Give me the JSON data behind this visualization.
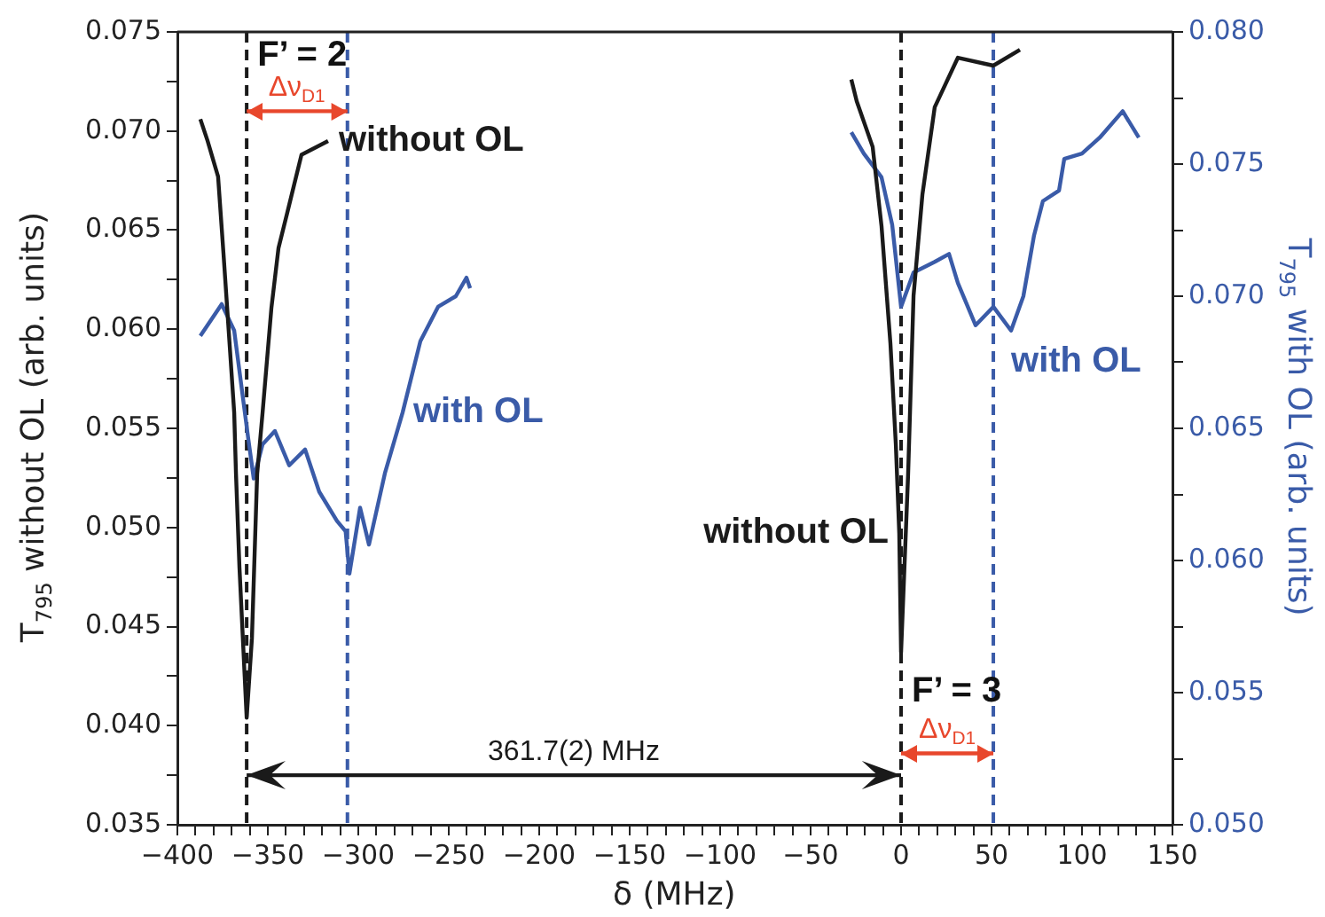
{
  "chart_data": {
    "type": "line",
    "xlabel": "δ (MHz)",
    "ylabel": "T$_{795}$ without OL (arb. units)",
    "y2label": "T$_{795}$ with OL (arb. units)",
    "series": [
      {
        "color": "#1a1a1a",
        "x": [
          -387.3,
          -383.3,
          -377.5,
          -374.5,
          -372.5,
          -368.6,
          -367.6,
          -365.7,
          -361.7,
          -358.8,
          -355.9,
          -352.9,
          -348,
          -344.1,
          -339.2,
          -331.4,
          -316.7,
          -200,
          -27.5,
          -24.5,
          -15.7,
          -10.8,
          -5.9,
          -2.9,
          -1,
          0,
          3.9,
          6.9,
          11.8,
          18.6,
          31.4,
          51,
          65.7
        ],
        "values": [
          0.0706,
          0.0695,
          0.0677,
          0.0638,
          0.0611,
          0.0558,
          0.0527,
          0.048,
          0.0404,
          0.0444,
          0.0527,
          0.0558,
          0.0611,
          0.0641,
          0.0659,
          0.0688,
          0.0695,
          null,
          0.0726,
          0.0715,
          0.0692,
          0.0652,
          0.0593,
          0.0542,
          0.0497,
          0.0437,
          0.0527,
          0.0617,
          0.0668,
          0.0712,
          0.0737,
          0.0733,
          0.0741
        ]
      },
      {
        "color": "#3a5ba8",
        "axis": "y2",
        "x": [
          -387.3,
          -375.5,
          -368.6,
          -360.8,
          -357.8,
          -352.9,
          -346.1,
          -338.2,
          -329.4,
          -321.6,
          -311.8,
          -307,
          -304.9,
          -299,
          -294.1,
          -285.3,
          -275.5,
          -265.7,
          -255.9,
          -246.1,
          -240.2,
          -238.2,
          -100,
          -27.5,
          -20.6,
          -10.8,
          -4.9,
          0,
          6.9,
          18.6,
          26.5,
          31.4,
          41.2,
          51,
          60.8,
          67.6,
          73.5,
          78.4,
          87.3,
          90.2,
          100,
          109.8,
          122.5,
          131.4
        ],
        "values": [
          0.0685,
          0.0697,
          0.0687,
          0.0646,
          0.0631,
          0.0644,
          0.0649,
          0.0636,
          0.0642,
          0.0626,
          0.0615,
          0.0611,
          0.0595,
          0.062,
          0.0606,
          0.0633,
          0.0656,
          0.0683,
          0.0696,
          0.07,
          0.0707,
          0.0703,
          null,
          0.0762,
          0.0754,
          0.0745,
          0.0727,
          0.0696,
          0.0709,
          0.0713,
          0.0716,
          0.0705,
          0.0689,
          0.0696,
          0.0687,
          0.07,
          0.0723,
          0.0736,
          0.074,
          0.0752,
          0.0754,
          0.076,
          0.077,
          0.076
        ]
      },
      {
        "type": "line",
        "color": "#e8472c",
        "x": [
          -361.7,
          -306
        ],
        "values": [
          0.071,
          0.071
        ]
      },
      {
        "type": "line",
        "color": "#1a1a1a",
        "x": [
          -361.7,
          0
        ],
        "values": [
          0.0375,
          0.0375
        ]
      },
      {
        "type": "line",
        "color": "#e8472c",
        "x": [
          0,
          51
        ],
        "values": [
          0.0386,
          0.0386
        ]
      }
    ],
    "xlim": [
      -400,
      150
    ],
    "xticks": [
      {
        "value": -400,
        "label": "−400"
      },
      {
        "value": -390,
        "label": null
      },
      {
        "value": -380,
        "label": null
      },
      {
        "value": -370,
        "label": null
      },
      {
        "value": -360,
        "label": null
      },
      {
        "value": -350,
        "label": "−350"
      },
      {
        "value": -340,
        "label": null
      },
      {
        "value": -330,
        "label": null
      },
      {
        "value": -320,
        "label": null
      },
      {
        "value": -310,
        "label": null
      },
      {
        "value": -300,
        "label": "−300"
      },
      {
        "value": -290,
        "label": null
      },
      {
        "value": -280,
        "label": null
      },
      {
        "value": -270,
        "label": null
      },
      {
        "value": -260,
        "label": null
      },
      {
        "value": -250,
        "label": "−250"
      },
      {
        "value": -240,
        "label": null
      },
      {
        "value": -230,
        "label": null
      },
      {
        "value": -220,
        "label": null
      },
      {
        "value": -210,
        "label": null
      },
      {
        "value": -200,
        "label": "−200"
      },
      {
        "value": -190,
        "label": null
      },
      {
        "value": -180,
        "label": null
      },
      {
        "value": -170,
        "label": null
      },
      {
        "value": -160,
        "label": null
      },
      {
        "value": -150,
        "label": "−150"
      },
      {
        "value": -140,
        "label": null
      },
      {
        "value": -130,
        "label": null
      },
      {
        "value": -120,
        "label": null
      },
      {
        "value": -110,
        "label": null
      },
      {
        "value": -100,
        "label": "−100"
      },
      {
        "value": -90,
        "label": null
      },
      {
        "value": -80,
        "label": null
      },
      {
        "value": -70,
        "label": null
      },
      {
        "value": -60,
        "label": null
      },
      {
        "value": -50,
        "label": "−50"
      },
      {
        "value": -40,
        "label": null
      },
      {
        "value": -30,
        "label": null
      },
      {
        "value": -20,
        "label": null
      },
      {
        "value": -10,
        "label": null
      },
      0,
      {
        "value": 10,
        "label": null
      },
      {
        "value": 20,
        "label": null
      },
      {
        "value": 30,
        "label": null
      },
      {
        "value": 40,
        "label": null
      },
      50,
      {
        "value": 60,
        "label": null
      },
      {
        "value": 70,
        "label": null
      },
      {
        "value": 80,
        "label": null
      },
      {
        "value": 90,
        "label": null
      },
      100,
      {
        "value": 110,
        "label": null
      },
      {
        "value": 120,
        "label": null
      },
      {
        "value": 130,
        "label": null
      },
      {
        "value": 140,
        "label": null
      },
      150
    ],
    "ylim": [
      0.035,
      0.075
    ],
    "yticks": [
      {
        "value": 0.035,
        "label": "0.035"
      },
      {
        "value": 0.0375,
        "label": null
      },
      {
        "value": 0.04,
        "label": "0.040"
      },
      {
        "value": 0.0425,
        "label": null
      },
      {
        "value": 0.045,
        "label": "0.045"
      },
      {
        "value": 0.0475,
        "label": null
      },
      {
        "value": 0.05,
        "label": "0.050"
      },
      {
        "value": 0.0525,
        "label": null
      },
      {
        "value": 0.055,
        "label": "0.055"
      },
      {
        "value": 0.0575,
        "label": null
      },
      {
        "value": 0.06,
        "label": "0.060"
      },
      {
        "value": 0.0625,
        "label": null
      },
      {
        "value": 0.065,
        "label": "0.065"
      },
      {
        "value": 0.0675,
        "label": null
      },
      {
        "value": 0.07,
        "label": "0.070"
      },
      {
        "value": 0.0725,
        "label": null
      },
      {
        "value": 0.075,
        "label": "0.075"
      }
    ],
    "y2lim": [
      0.05,
      0.08
    ],
    "y2ticks": [
      {
        "value": 0.05,
        "label": "0.050"
      },
      {
        "value": 0.0525,
        "label": null
      },
      {
        "value": 0.055,
        "label": "0.055"
      },
      {
        "value": 0.0575,
        "label": null
      },
      {
        "value": 0.06,
        "label": "0.060"
      },
      {
        "value": 0.0625,
        "label": null
      },
      {
        "value": 0.065,
        "label": "0.065"
      },
      {
        "value": 0.0675,
        "label": null
      },
      {
        "value": 0.07,
        "label": "0.070"
      },
      {
        "value": 0.0725,
        "label": null
      },
      {
        "value": 0.075,
        "label": "0.075"
      },
      {
        "value": 0.0775,
        "label": null
      },
      {
        "value": 0.08,
        "label": "0.080"
      }
    ],
    "ref_lines": [
      {
        "axis": "x",
        "value": -361.7,
        "color": "#1a1a1a",
        "line_style": "dashed"
      },
      {
        "axis": "x",
        "value": -306,
        "color": "#3a5ba8",
        "line_style": "dashed"
      },
      {
        "axis": "x",
        "value": 0,
        "color": "#1a1a1a",
        "line_style": "dashed"
      },
      {
        "axis": "x",
        "value": 51,
        "color": "#3a5ba8",
        "line_style": "dashed"
      }
    ],
    "annotations": [
      {
        "text": "F’ = 2",
        "x": -361.7,
        "y": 0.0738
      },
      {
        "text": "F’ = 3",
        "x": 0,
        "y": 0.0417
      },
      {
        "text": "without OL",
        "x": -316.7,
        "y": 0.0695
      },
      {
        "text": "with OL",
        "x": -275.5,
        "y": 0.0558
      },
      {
        "text": "without OL",
        "x": -1,
        "y": 0.0497
      },
      {
        "text": "with OL",
        "x": 60.8,
        "y": 0.0599
      },
      {
        "text": "Δν$_{D1}$",
        "x": -334,
        "y": 0.071
      },
      {
        "text": "361.7(2) MHz",
        "x": -180.9,
        "y": 0.0375
      },
      {
        "text": "Δν$_{D1}$",
        "x": 25.5,
        "y": 0.0386
      }
    ],
    "grid": false,
    "legend": false,
    "marker": "none",
    "line_style": "solid"
  }
}
